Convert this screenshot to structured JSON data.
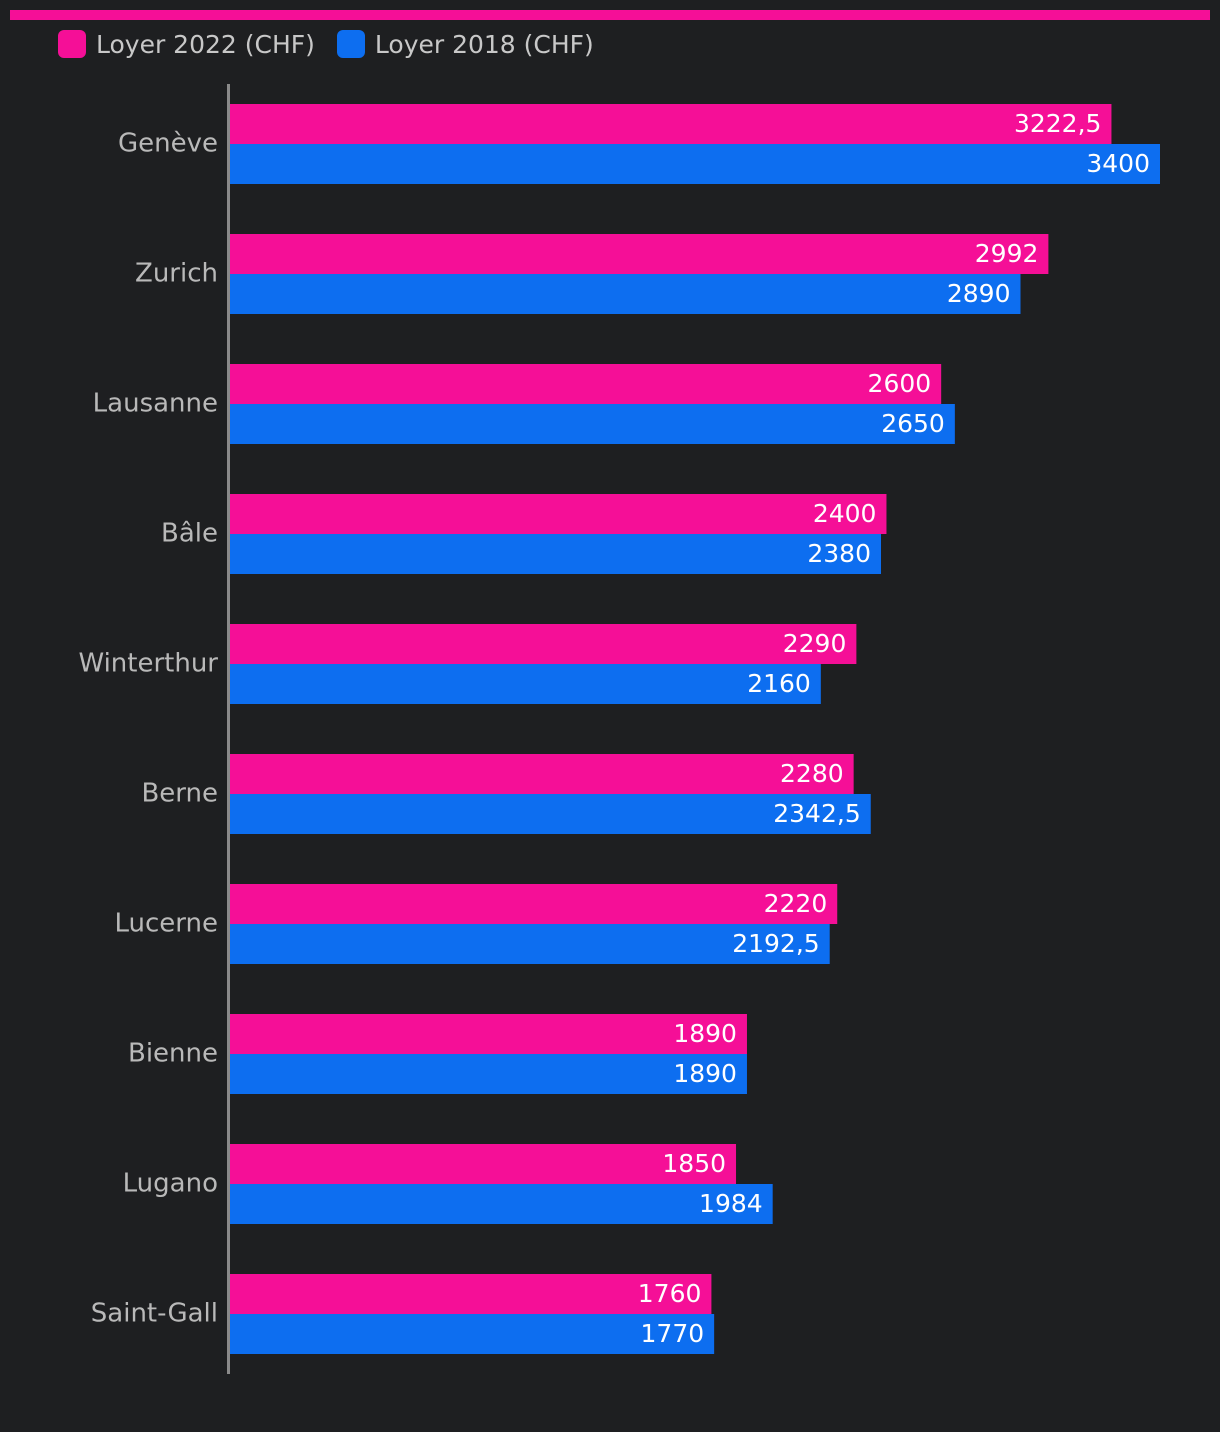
{
  "colors": {
    "background": "#1e1f21",
    "accent": "#f50f97",
    "series_2022": "#f50f97",
    "series_2018": "#0d6ef0",
    "axis": "#8a8a8a"
  },
  "legend": {
    "items": [
      {
        "label": "Loyer 2022 (CHF)",
        "color": "#f50f97"
      },
      {
        "label": "Loyer 2018 (CHF)",
        "color": "#0d6ef0"
      }
    ]
  },
  "chart_data": {
    "type": "bar",
    "orientation": "horizontal",
    "categories": [
      "Genève",
      "Zurich",
      "Lausanne",
      "Bâle",
      "Winterthur",
      "Berne",
      "Lucerne",
      "Bienne",
      "Lugano",
      "Saint-Gall"
    ],
    "series": [
      {
        "name": "Loyer 2022 (CHF)",
        "values": [
          3222.5,
          2992,
          2600,
          2400,
          2290,
          2280,
          2220,
          1890,
          1850,
          1760
        ]
      },
      {
        "name": "Loyer 2018 (CHF)",
        "values": [
          3400,
          2890,
          2650,
          2380,
          2160,
          2342.5,
          2192.5,
          1890,
          1984,
          1770
        ]
      }
    ],
    "value_labels": [
      [
        "3222,5",
        "2992",
        "2600",
        "2400",
        "2290",
        "2280",
        "2220",
        "1890",
        "1850",
        "1760"
      ],
      [
        "3400",
        "2890",
        "2650",
        "2380",
        "2160",
        "2342,5",
        "2192,5",
        "1890",
        "1984",
        "1770"
      ]
    ],
    "xlim": [
      0,
      3400
    ],
    "legend_position": "top-left",
    "grid": false
  }
}
